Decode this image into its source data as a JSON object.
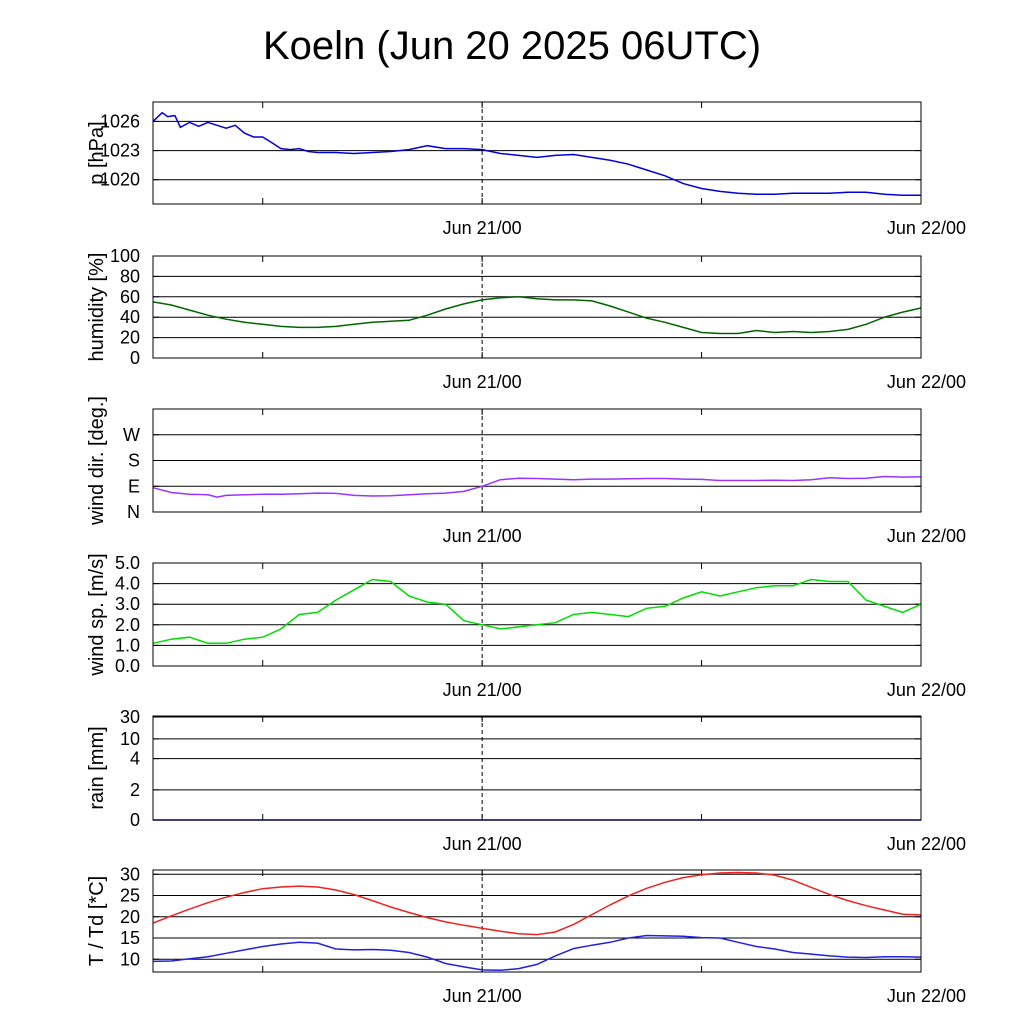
{
  "title": "Koeln (Jun 20 2025 06UTC)",
  "chart_data": [
    {
      "type": "line",
      "ylabel": "p [hPa]",
      "x_tick_labels": [
        "Jun 21/00",
        "Jun 22/00"
      ],
      "x_range_hours": [
        0,
        42
      ],
      "ylim": [
        1017.5,
        1028
      ],
      "y_ticks": [
        1020,
        1023,
        1026
      ],
      "y_tick_labels": [
        "1020",
        "1023",
        "1026"
      ],
      "series": [
        {
          "color": "#0000dd",
          "x": [
            0,
            0.5,
            0.8,
            1.2,
            1.5,
            2,
            2.5,
            3,
            3.5,
            4,
            4.5,
            5,
            5.5,
            6,
            6.5,
            7,
            7.5,
            8,
            8.5,
            9,
            10,
            11,
            12,
            13,
            14,
            15,
            16,
            17,
            18,
            19,
            20,
            21,
            22,
            23,
            24,
            25,
            26,
            27,
            28,
            29,
            30,
            31,
            32,
            33,
            34,
            35,
            36,
            37,
            38,
            39,
            40,
            41,
            42
          ],
          "y": [
            1026.0,
            1026.9,
            1026.5,
            1026.6,
            1025.4,
            1025.9,
            1025.5,
            1025.9,
            1025.6,
            1025.3,
            1025.6,
            1024.8,
            1024.4,
            1024.4,
            1023.8,
            1023.2,
            1023.1,
            1023.2,
            1022.9,
            1022.8,
            1022.8,
            1022.7,
            1022.8,
            1022.9,
            1023.1,
            1023.5,
            1023.2,
            1023.2,
            1023.1,
            1022.7,
            1022.5,
            1022.3,
            1022.5,
            1022.6,
            1022.3,
            1022.0,
            1021.6,
            1021.0,
            1020.4,
            1019.6,
            1019.1,
            1018.8,
            1018.6,
            1018.5,
            1018.5,
            1018.6,
            1018.6,
            1018.6,
            1018.7,
            1018.7,
            1018.5,
            1018.4,
            1018.4
          ]
        }
      ]
    },
    {
      "type": "line",
      "ylabel": "humidity [%]",
      "x_tick_labels": [
        "Jun 21/00",
        "Jun 22/00"
      ],
      "x_range_hours": [
        0,
        42
      ],
      "ylim": [
        0,
        100
      ],
      "y_ticks": [
        0,
        20,
        40,
        60,
        80,
        100
      ],
      "y_tick_labels": [
        "0",
        "20",
        "40",
        "60",
        "80",
        "100"
      ],
      "series": [
        {
          "color": "#006400",
          "x": [
            0,
            1,
            2,
            3,
            4,
            5,
            6,
            7,
            8,
            9,
            10,
            11,
            12,
            13,
            14,
            15,
            16,
            17,
            18,
            19,
            20,
            21,
            22,
            23,
            24,
            25,
            26,
            27,
            28,
            29,
            30,
            31,
            32,
            33,
            34,
            35,
            36,
            37,
            38,
            39,
            40,
            41,
            42
          ],
          "y": [
            55,
            52,
            47,
            42,
            38,
            35,
            33,
            31,
            30,
            30,
            31,
            33,
            35,
            36,
            37,
            42,
            48,
            53,
            57,
            59,
            60,
            58,
            57,
            57,
            56,
            51,
            45,
            39,
            35,
            30,
            25,
            24,
            24,
            27,
            25,
            26,
            25,
            26,
            28,
            33,
            40,
            45,
            49
          ]
        }
      ]
    },
    {
      "type": "line",
      "ylabel": "wind dir. [deg.]",
      "x_tick_labels": [
        "Jun 21/00",
        "Jun 22/00"
      ],
      "x_range_hours": [
        0,
        42
      ],
      "ylim": [
        0,
        360
      ],
      "y_ticks": [
        0,
        90,
        180,
        270
      ],
      "y_tick_labels": [
        "N",
        "E",
        "S",
        "W"
      ],
      "series": [
        {
          "color": "#9933ff",
          "x": [
            0,
            1,
            2,
            3,
            3.5,
            4,
            5,
            6,
            7,
            8,
            9,
            10,
            11,
            12,
            13,
            14,
            15,
            16,
            17,
            18,
            19,
            20,
            21,
            22,
            23,
            24,
            25,
            26,
            27,
            28,
            29,
            30,
            31,
            32,
            33,
            34,
            35,
            36,
            37,
            38,
            39,
            40,
            41,
            42
          ],
          "y": [
            85,
            68,
            62,
            60,
            52,
            58,
            60,
            62,
            62,
            64,
            66,
            65,
            58,
            56,
            57,
            60,
            64,
            66,
            72,
            90,
            113,
            118,
            117,
            115,
            113,
            115,
            115,
            116,
            117,
            117,
            115,
            114,
            110,
            110,
            110,
            111,
            110,
            113,
            120,
            117,
            118,
            124,
            122,
            123
          ]
        }
      ]
    },
    {
      "type": "line",
      "ylabel": "wind sp. [m/s]",
      "x_tick_labels": [
        "Jun 21/00",
        "Jun 22/00"
      ],
      "x_range_hours": [
        0,
        42
      ],
      "ylim": [
        0,
        5
      ],
      "y_ticks": [
        0,
        1,
        2,
        3,
        4,
        5
      ],
      "y_tick_labels": [
        "0.0",
        "1.0",
        "2.0",
        "3.0",
        "4.0",
        "5.0"
      ],
      "series": [
        {
          "color": "#00dd00",
          "x": [
            0,
            1,
            2,
            3,
            4,
            5,
            6,
            7,
            8,
            9,
            10,
            11,
            12,
            13,
            14,
            15,
            16,
            17,
            18,
            19,
            20,
            21,
            22,
            23,
            24,
            25,
            26,
            27,
            28,
            29,
            30,
            31,
            32,
            33,
            34,
            35,
            36,
            37,
            38,
            39,
            40,
            41,
            42
          ],
          "y": [
            1.1,
            1.3,
            1.4,
            1.1,
            1.1,
            1.3,
            1.4,
            1.8,
            2.5,
            2.6,
            3.2,
            3.7,
            4.2,
            4.1,
            3.4,
            3.1,
            3.0,
            2.2,
            2.0,
            1.8,
            1.9,
            2.0,
            2.1,
            2.5,
            2.6,
            2.5,
            2.4,
            2.8,
            2.9,
            3.3,
            3.6,
            3.4,
            3.6,
            3.8,
            3.9,
            3.9,
            4.2,
            4.1,
            4.1,
            3.2,
            2.9,
            2.6,
            3.0
          ]
        }
      ]
    },
    {
      "type": "line",
      "ylabel": "rain [mm]",
      "x_tick_labels": [
        "Jun 21/00",
        "Jun 22/00"
      ],
      "x_range_hours": [
        0,
        42
      ],
      "y_ticks": [
        0,
        2,
        4,
        10,
        30
      ],
      "y_tick_labels": [
        "0",
        "2",
        "4",
        "10",
        "30"
      ],
      "series": [
        {
          "color": "#0000dd",
          "x": [
            0,
            42
          ],
          "y": [
            0,
            0
          ]
        }
      ]
    },
    {
      "type": "line",
      "ylabel": "T / Td [*C]",
      "x_tick_labels": [
        "Jun 21/00",
        "Jun 22/00"
      ],
      "x_range_hours": [
        0,
        42
      ],
      "ylim": [
        7,
        31
      ],
      "y_ticks": [
        10,
        15,
        20,
        25,
        30
      ],
      "y_tick_labels": [
        "10",
        "15",
        "20",
        "25",
        "30"
      ],
      "series": [
        {
          "color": "#ee2222",
          "x": [
            0,
            1,
            2,
            3,
            4,
            5,
            6,
            7,
            8,
            9,
            10,
            11,
            12,
            13,
            14,
            15,
            16,
            17,
            18,
            19,
            20,
            21,
            22,
            23,
            24,
            25,
            26,
            27,
            28,
            29,
            30,
            31,
            32,
            33,
            34,
            35,
            36,
            37,
            38,
            39,
            40,
            41,
            42
          ],
          "y": [
            18.5,
            20.2,
            21.8,
            23.3,
            24.6,
            25.7,
            26.6,
            27.0,
            27.2,
            27.0,
            26.3,
            25.2,
            23.8,
            22.3,
            21.0,
            19.8,
            18.8,
            18.0,
            17.3,
            16.6,
            16.0,
            15.8,
            16.4,
            18.2,
            20.5,
            22.8,
            24.9,
            26.7,
            28.1,
            29.2,
            29.9,
            30.3,
            30.4,
            30.3,
            29.8,
            28.6,
            26.9,
            25.2,
            23.8,
            22.6,
            21.6,
            20.6,
            20.4
          ]
        },
        {
          "color": "#2222dd",
          "x": [
            0,
            1,
            2,
            3,
            4,
            5,
            6,
            7,
            8,
            9,
            10,
            11,
            12,
            13,
            14,
            15,
            16,
            17,
            18,
            19,
            20,
            21,
            22,
            23,
            24,
            25,
            26,
            27,
            28,
            29,
            30,
            31,
            32,
            33,
            34,
            35,
            36,
            37,
            38,
            39,
            40,
            41,
            42
          ],
          "y": [
            9.5,
            9.6,
            10.1,
            10.6,
            11.4,
            12.2,
            13.0,
            13.6,
            14.0,
            13.8,
            12.4,
            12.2,
            12.3,
            12.1,
            11.6,
            10.5,
            9.0,
            8.2,
            7.5,
            7.4,
            7.8,
            8.8,
            10.8,
            12.5,
            13.3,
            14.0,
            15.0,
            15.6,
            15.5,
            15.4,
            15.1,
            15.0,
            14.0,
            13.0,
            12.4,
            11.6,
            11.2,
            10.8,
            10.5,
            10.4,
            10.6,
            10.6,
            10.5
          ]
        }
      ]
    }
  ]
}
